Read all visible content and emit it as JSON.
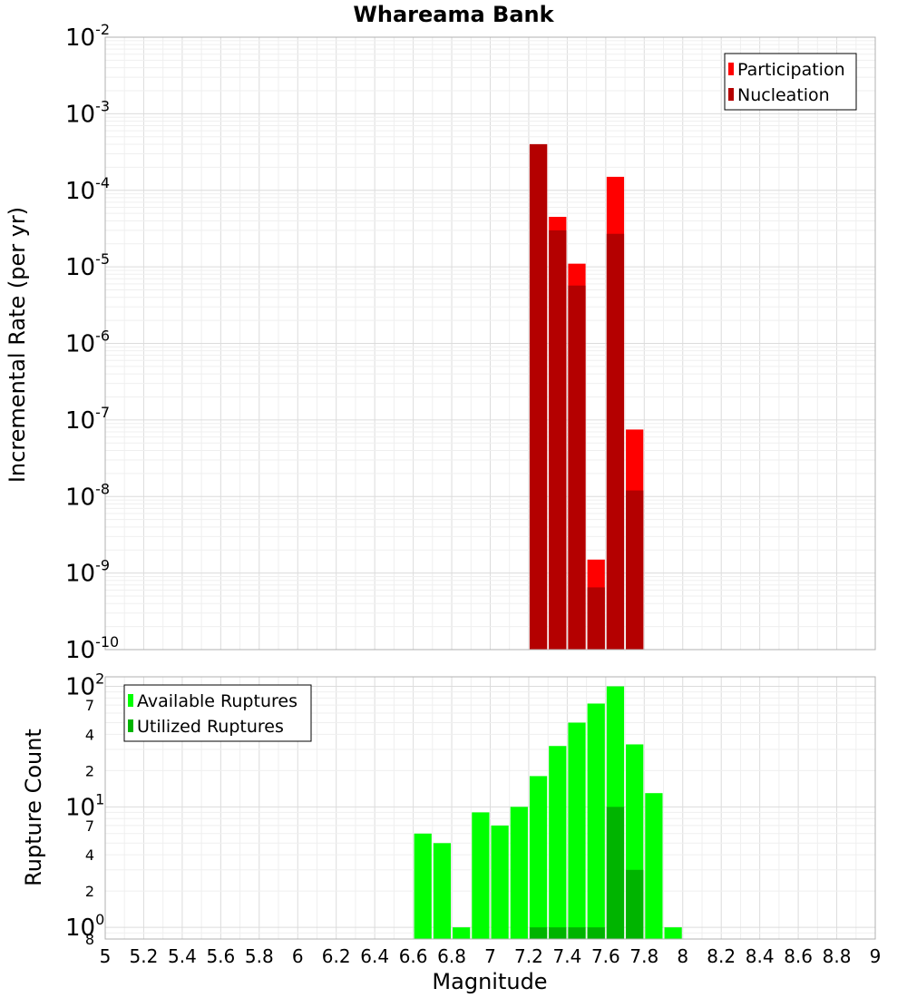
{
  "title": "Whareama Bank",
  "chart_data": [
    {
      "type": "bar",
      "ylabel": "Incremental Rate (per yr)",
      "yscale": "log",
      "ylim": [
        1e-10,
        0.01
      ],
      "xlim": [
        5,
        9
      ],
      "bar_width": 0.1,
      "y_major_ticks": [
        {
          "base": "10",
          "exp": "-10",
          "value": 1e-10
        },
        {
          "base": "10",
          "exp": "-9",
          "value": 1e-09
        },
        {
          "base": "10",
          "exp": "-8",
          "value": 1e-08
        },
        {
          "base": "10",
          "exp": "-7",
          "value": 1e-07
        },
        {
          "base": "10",
          "exp": "-6",
          "value": 1e-06
        },
        {
          "base": "10",
          "exp": "-5",
          "value": 1e-05
        },
        {
          "base": "10",
          "exp": "-4",
          "value": 0.0001
        },
        {
          "base": "10",
          "exp": "-3",
          "value": 0.001
        },
        {
          "base": "10",
          "exp": "-2",
          "value": 0.01
        }
      ],
      "legend": {
        "position": "top-right",
        "entries": [
          "Participation",
          "Nucleation"
        ]
      },
      "series": [
        {
          "name": "Participation",
          "color": "#ff0000",
          "x": [
            7.25,
            7.35,
            7.45,
            7.55,
            7.65,
            7.75
          ],
          "values": [
            0.0004,
            4.5e-05,
            1.1e-05,
            1.5e-09,
            0.00015,
            7.5e-08
          ]
        },
        {
          "name": "Nucleation",
          "color": "#b40000",
          "x": [
            7.25,
            7.35,
            7.45,
            7.55,
            7.65,
            7.75
          ],
          "values": [
            0.0004,
            3e-05,
            5.7e-06,
            6.5e-10,
            2.7e-05,
            1.2e-08
          ]
        }
      ]
    },
    {
      "type": "bar",
      "ylabel": "Rupture Count",
      "xlabel": "Magnitude",
      "yscale": "log",
      "ylim": [
        0.8,
        120
      ],
      "xlim": [
        5,
        9
      ],
      "bar_width": 0.1,
      "x_ticks": [
        "5",
        "5.2",
        "5.4",
        "5.6",
        "5.8",
        "6",
        "6.2",
        "6.4",
        "6.6",
        "6.8",
        "7",
        "7.2",
        "7.4",
        "7.6",
        "7.8",
        "8",
        "8.2",
        "8.4",
        "8.6",
        "8.8",
        "9"
      ],
      "y_major_ticks": [
        {
          "base": "10",
          "exp": "0",
          "value": 1
        },
        {
          "base": "10",
          "exp": "1",
          "value": 10
        },
        {
          "base": "10",
          "exp": "2",
          "value": 100
        }
      ],
      "y_minor_ticks": [
        {
          "label": "8",
          "value": 0.8
        },
        {
          "label": "2",
          "value": 2
        },
        {
          "label": "4",
          "value": 4
        },
        {
          "label": "7",
          "value": 7
        },
        {
          "label": "2",
          "value": 20
        },
        {
          "label": "4",
          "value": 40
        },
        {
          "label": "7",
          "value": 70
        }
      ],
      "legend": {
        "position": "top-left",
        "entries": [
          "Available Ruptures",
          "Utilized Ruptures"
        ]
      },
      "series": [
        {
          "name": "Available Ruptures",
          "color": "#00ff00",
          "x": [
            6.65,
            6.75,
            6.85,
            6.95,
            7.05,
            7.15,
            7.25,
            7.35,
            7.45,
            7.55,
            7.65,
            7.75,
            7.85,
            7.95
          ],
          "values": [
            6,
            5,
            1,
            9,
            7,
            10,
            18,
            32,
            50,
            72,
            100,
            33,
            13,
            1
          ]
        },
        {
          "name": "Utilized Ruptures",
          "color": "#00b400",
          "x": [
            7.25,
            7.35,
            7.45,
            7.55,
            7.65,
            7.75
          ],
          "values": [
            1,
            1,
            1,
            1,
            10,
            3
          ]
        }
      ]
    }
  ]
}
